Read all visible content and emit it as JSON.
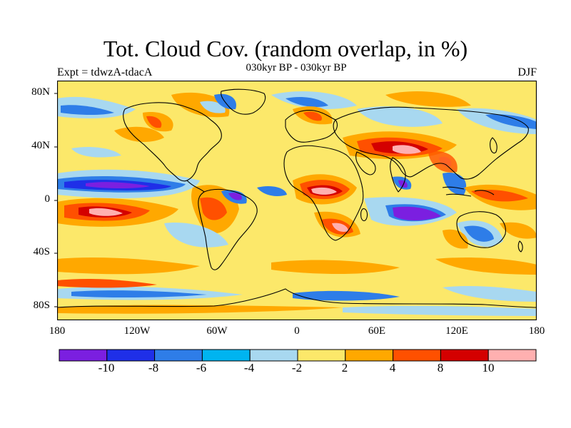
{
  "title": "Tot. Cloud Cov. (random overlap, in %)",
  "subtitle": "030kyr BP - 030kyr BP",
  "left_label": "Expt = tdwzA-tdacA",
  "right_label": "DJF",
  "axes": {
    "x_ticks": [
      "180",
      "120W",
      "60W",
      "0",
      "60E",
      "120E",
      "180"
    ],
    "y_ticks": [
      "80N",
      "40N",
      "0",
      "40S",
      "80S"
    ]
  },
  "colorbar": {
    "labels": [
      "-10",
      "-8",
      "-6",
      "-4",
      "-2",
      "2",
      "4",
      "8",
      "10"
    ],
    "colors": [
      "#7b1fe0",
      "#1f2fe8",
      "#2e7de8",
      "#00b4f0",
      "#a8d8f0",
      "#fce86a",
      "#ffa800",
      "#ff5000",
      "#d40000",
      "#ffb0b0"
    ]
  },
  "map_fields": {
    "background": "#fce86a",
    "coast_color": "#000000"
  }
}
